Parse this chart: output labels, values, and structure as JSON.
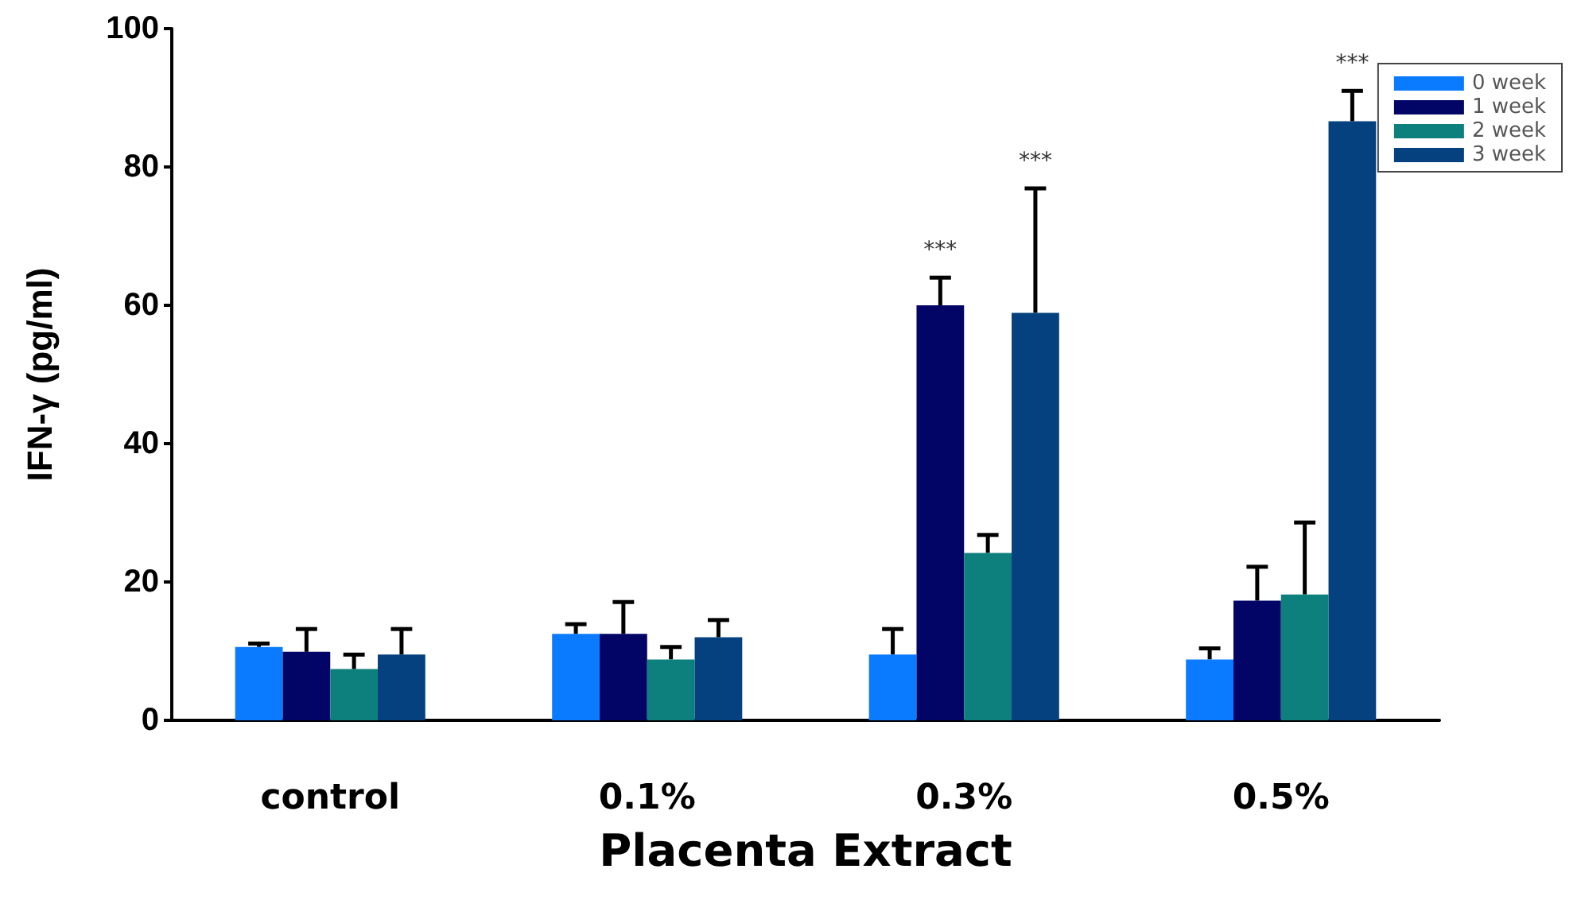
{
  "chart_data": {
    "type": "bar",
    "xlabel": "Placenta Extract",
    "ylabel": "IFN-γ (pg/ml)",
    "categories": [
      "control",
      "0.1%",
      "0.3%",
      "0.5%"
    ],
    "ylim": [
      0,
      100
    ],
    "yticks": [
      0,
      20,
      40,
      60,
      80,
      100
    ],
    "grid": false,
    "legend": "top right",
    "series": [
      {
        "name": "0 week",
        "color": "#0a7bff",
        "values": [
          10.6,
          12.5,
          9.5,
          8.8
        ],
        "errors": [
          [
            10.6,
            11.1
          ],
          [
            12.5,
            13.9
          ],
          [
            9.5,
            13.2
          ],
          [
            8.8,
            10.4
          ]
        ]
      },
      {
        "name": "1 week",
        "color": "#020566",
        "values": [
          9.9,
          12.5,
          60.0,
          17.3
        ],
        "errors": [
          [
            9.9,
            13.2
          ],
          [
            12.5,
            17.1
          ],
          [
            60.0,
            64.0
          ],
          [
            17.3,
            22.2
          ]
        ]
      },
      {
        "name": "2 week",
        "color": "#0d7f7c",
        "values": [
          7.4,
          8.8,
          24.2,
          18.2
        ],
        "errors": [
          [
            7.4,
            9.5
          ],
          [
            8.8,
            10.6
          ],
          [
            24.2,
            26.8
          ],
          [
            18.2,
            28.6
          ]
        ]
      },
      {
        "name": "3 week",
        "color": "#05417f",
        "values": [
          9.5,
          12.0,
          58.9,
          86.6
        ],
        "errors": [
          [
            9.5,
            13.2
          ],
          [
            12.0,
            14.5
          ],
          [
            58.9,
            76.9
          ],
          [
            86.6,
            91.0
          ]
        ]
      }
    ],
    "annotations": [
      "***",
      "***",
      "***"
    ]
  }
}
